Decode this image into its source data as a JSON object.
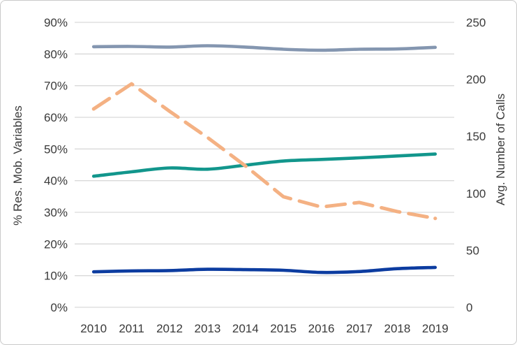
{
  "chart_data": {
    "type": "line",
    "categories": [
      "2010",
      "2011",
      "2012",
      "2013",
      "2014",
      "2015",
      "2016",
      "2017",
      "2018",
      "2019"
    ],
    "series": [
      {
        "id": "blue-gray-solid-line",
        "axis": "left",
        "unit": "%",
        "line_style": "solid",
        "color": "#8496B0",
        "values": [
          82.3,
          82.4,
          82.2,
          82.6,
          82.2,
          81.5,
          81.2,
          81.5,
          81.6,
          82.1
        ]
      },
      {
        "id": "teal-solid-line",
        "axis": "left",
        "unit": "%",
        "line_style": "solid",
        "color": "#12968C",
        "values": [
          41.4,
          42.8,
          44.0,
          43.6,
          44.9,
          46.2,
          46.7,
          47.2,
          47.8,
          48.4
        ]
      },
      {
        "id": "navy-solid-line",
        "axis": "left",
        "unit": "%",
        "line_style": "solid",
        "color": "#0C3CA0",
        "values": [
          11.2,
          11.5,
          11.6,
          12.0,
          11.9,
          11.7,
          11.0,
          11.3,
          12.2,
          12.6
        ]
      },
      {
        "id": "orange-dashed-line",
        "axis": "right",
        "unit": "calls",
        "line_style": "dashed",
        "color": "#F4B183",
        "values": [
          174,
          196,
          172,
          149,
          124,
          97,
          88,
          92,
          84,
          78
        ]
      }
    ],
    "left_axis": {
      "label": "% Res. Mob. Variables",
      "range": [
        0,
        90
      ],
      "tick_step": 10,
      "tick_labels": [
        "0%",
        "10%",
        "20%",
        "30%",
        "40%",
        "50%",
        "60%",
        "70%",
        "80%",
        "90%"
      ]
    },
    "right_axis": {
      "label": "Avg. Number of Calls",
      "range": [
        0,
        250
      ],
      "tick_step": 50,
      "tick_labels": [
        "0",
        "50",
        "100",
        "150",
        "200",
        "250"
      ]
    },
    "grid": true,
    "legend": "none",
    "title": ""
  },
  "colors": {
    "background": "#FFFFFF",
    "border": "#C9C9C9",
    "gridline": "#D9D9D9",
    "tick_text": "#3A3A3A"
  }
}
